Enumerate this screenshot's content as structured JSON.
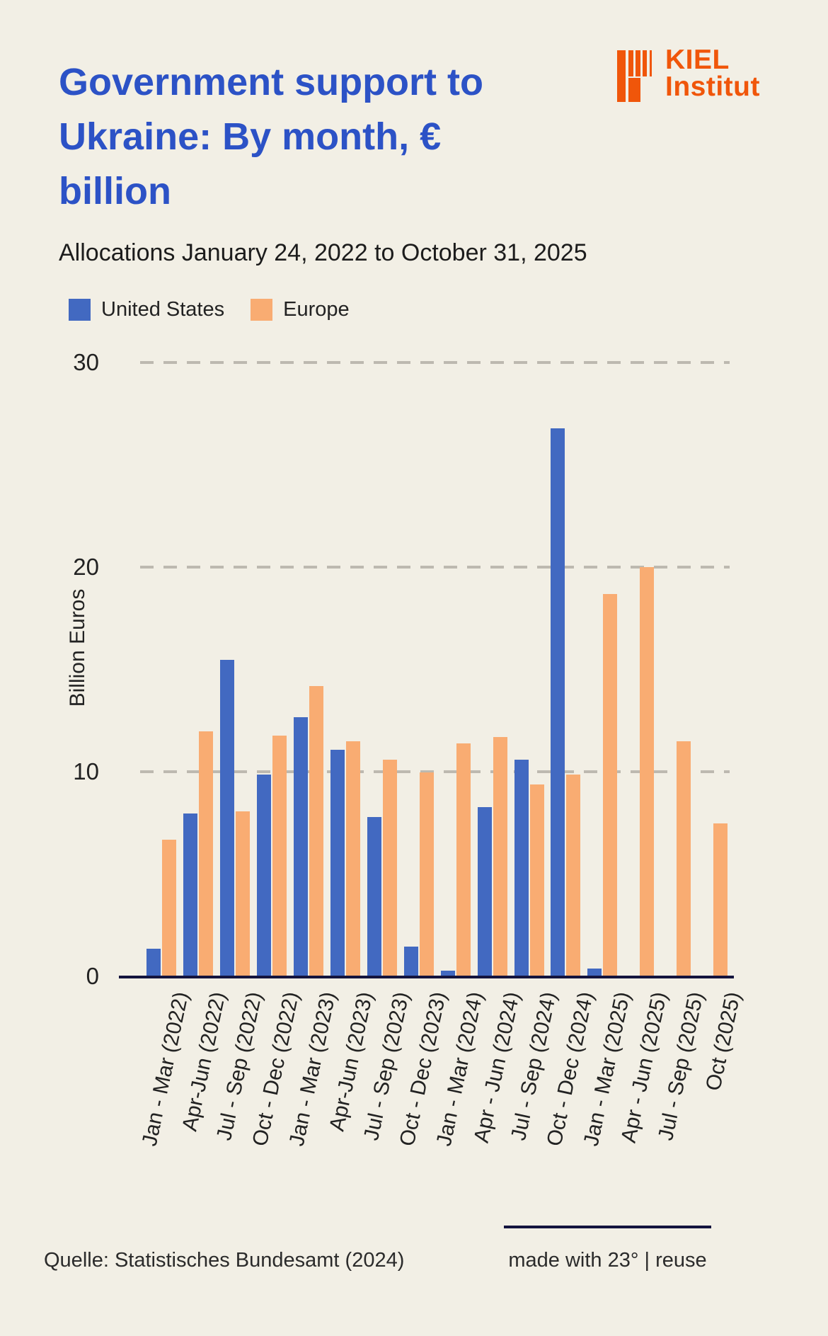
{
  "page": {
    "background": "#F2EFE5"
  },
  "header": {
    "title": "Government support to Ukraine: By month, € billion",
    "subtitle": "Allocations January 24, 2022 to October 31, 2025"
  },
  "logo": {
    "line1": "KIEL",
    "line2": "Institut",
    "color": "#F0560A"
  },
  "chart_data": {
    "type": "bar",
    "title": "Government support to Ukraine: By month, € billion",
    "subtitle": "Allocations January 24, 2022 to October 31, 2025",
    "ylabel": "Billion Euros",
    "ylim": [
      0,
      30
    ],
    "yticks": [
      0,
      10,
      20,
      30
    ],
    "ytick_labels_top_to_bottom": [
      "30",
      "20",
      "10",
      "0"
    ],
    "grid": "horizontal-dashed",
    "legend_position": "top-left",
    "categories": [
      "Jan - Mar (2022)",
      "Apr-Jun (2022)",
      "Jul - Sep (2022)",
      "Oct - Dec (2022)",
      "Jan - Mar (2023)",
      "Apr-Jun (2023)",
      "Jul - Sep (2023)",
      "Oct - Dec (2023)",
      "Jan - Mar (2024)",
      "Apr - Jun (2024)",
      "Jul - Sep (2024)",
      "Oct - Dec (2024)",
      "Jan - Mar (2025)",
      "Apr - Jun (2025)",
      "Jul - Sep (2025)",
      "Oct (2025)"
    ],
    "series": [
      {
        "name": "United States",
        "color": "#4269C1",
        "values": [
          1.4,
          8.0,
          15.5,
          9.9,
          12.7,
          11.1,
          7.8,
          1.5,
          0.3,
          8.3,
          10.6,
          26.8,
          0.4,
          null,
          null,
          null
        ]
      },
      {
        "name": "Europe",
        "color": "#F9AC72",
        "values": [
          6.7,
          12.0,
          8.1,
          11.8,
          14.2,
          11.5,
          10.6,
          10.0,
          11.4,
          11.7,
          9.4,
          9.9,
          18.7,
          20.0,
          11.5,
          7.5
        ]
      }
    ]
  },
  "footer": {
    "source": "Quelle: Statistisches Bundesamt (2024)",
    "credit": "made with 23° | reuse"
  }
}
